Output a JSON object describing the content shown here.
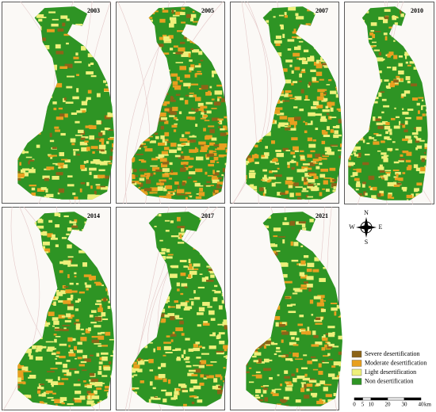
{
  "panels": [
    {
      "year": "2003"
    },
    {
      "year": "2005"
    },
    {
      "year": "2007"
    },
    {
      "year": "2010"
    },
    {
      "year": "2014"
    },
    {
      "year": "2017"
    },
    {
      "year": "2021"
    }
  ],
  "legend": {
    "items": [
      {
        "label": "Severe desertification",
        "color": "#8c6418"
      },
      {
        "label": "Moderate desertification",
        "color": "#e8a020"
      },
      {
        "label": "Light desertification",
        "color": "#eef07a"
      },
      {
        "label": "Non desertification",
        "color": "#2e9424"
      }
    ]
  },
  "compass": {
    "n": "N",
    "s": "S",
    "e": "E",
    "w": "W"
  },
  "scale_bar": {
    "ticks": [
      0,
      5,
      10,
      20,
      30,
      40
    ],
    "unit": "km"
  }
}
